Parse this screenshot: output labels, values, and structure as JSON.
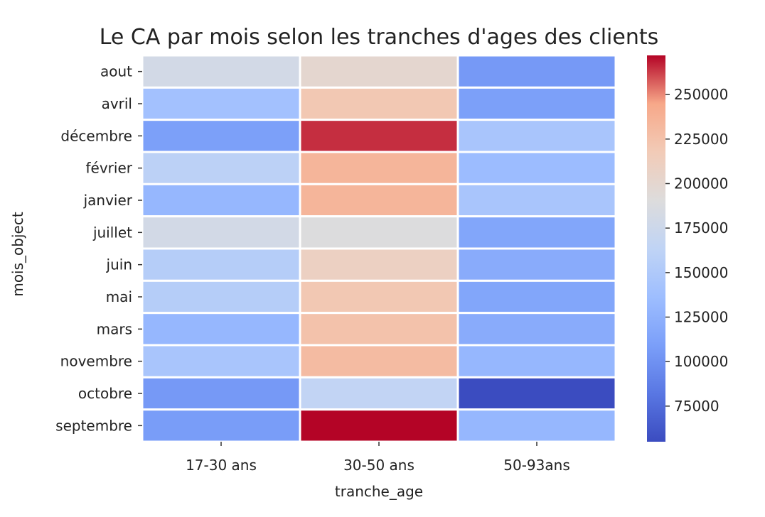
{
  "chart_data": {
    "type": "heatmap",
    "title": "Le CA par mois selon les tranches d'ages des clients",
    "xlabel": "tranche_age",
    "ylabel": "mois_object",
    "x_categories": [
      "17-30 ans",
      "30-50 ans",
      "50-93ans"
    ],
    "y_categories": [
      "aout",
      "avril",
      "décembre",
      "février",
      "janvier",
      "juillet",
      "juin",
      "mai",
      "mars",
      "novembre",
      "octobre",
      "septembre"
    ],
    "values": [
      [
        180000,
        200000,
        105000
      ],
      [
        140000,
        220000,
        110000
      ],
      [
        110000,
        265000,
        145000
      ],
      [
        160000,
        235000,
        135000
      ],
      [
        130000,
        235000,
        145000
      ],
      [
        180000,
        190000,
        115000
      ],
      [
        155000,
        210000,
        120000
      ],
      [
        155000,
        220000,
        115000
      ],
      [
        130000,
        225000,
        120000
      ],
      [
        145000,
        230000,
        130000
      ],
      [
        105000,
        165000,
        55000
      ],
      [
        108000,
        272000,
        130000
      ]
    ],
    "colormap": "coolwarm",
    "vmin": 55000,
    "vmax": 272000,
    "colorbar_ticks": [
      75000,
      100000,
      125000,
      150000,
      175000,
      200000,
      225000,
      250000
    ],
    "colorbar_tick_labels": [
      "75000",
      "100000",
      "125000",
      "150000",
      "175000",
      "200000",
      "225000",
      "250000"
    ],
    "legend": "colorbar-right",
    "grid": false
  }
}
